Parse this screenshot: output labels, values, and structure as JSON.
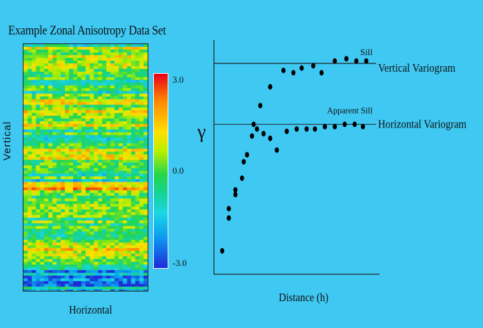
{
  "left_panel": {
    "title": "Example Zonal Anisotropy Data Set",
    "vertical_label": "Vertical",
    "horizontal_label": "Horizontal",
    "colorbar": {
      "ticks": [
        "3.0",
        "0.0",
        "-3.0"
      ],
      "range": [
        -3.0,
        3.0
      ]
    }
  },
  "chart_data": {
    "type": "scatter",
    "title": "",
    "xlabel": "Distance (h)",
    "ylabel": "γ",
    "xlim": [
      0,
      10
    ],
    "ylim": [
      0,
      10
    ],
    "series": [
      {
        "name": "Vertical Variogram",
        "points": [
          [
            0.5,
            1.0
          ],
          [
            0.9,
            2.4
          ],
          [
            1.3,
            3.4
          ],
          [
            1.8,
            4.8
          ],
          [
            2.4,
            6.4
          ],
          [
            2.8,
            7.2
          ],
          [
            3.4,
            8.0
          ],
          [
            4.2,
            8.7
          ],
          [
            4.8,
            8.6
          ],
          [
            5.3,
            8.8
          ],
          [
            6.0,
            8.9
          ],
          [
            6.5,
            8.6
          ],
          [
            7.3,
            9.1
          ],
          [
            8.0,
            9.2
          ],
          [
            8.6,
            9.1
          ],
          [
            9.2,
            9.1
          ]
        ],
        "sill_level": 9.0,
        "annotation": "Sill"
      },
      {
        "name": "Horizontal Variogram",
        "points": [
          [
            0.9,
            2.8
          ],
          [
            1.3,
            3.6
          ],
          [
            1.7,
            4.1
          ],
          [
            2.0,
            5.1
          ],
          [
            2.3,
            5.9
          ],
          [
            2.6,
            6.2
          ],
          [
            3.0,
            6.0
          ],
          [
            3.4,
            5.8
          ],
          [
            3.8,
            5.3
          ],
          [
            4.4,
            6.1
          ],
          [
            5.0,
            6.2
          ],
          [
            5.6,
            6.2
          ],
          [
            6.1,
            6.2
          ],
          [
            6.7,
            6.3
          ],
          [
            7.3,
            6.3
          ],
          [
            7.9,
            6.4
          ],
          [
            8.5,
            6.4
          ],
          [
            9.0,
            6.3
          ]
        ],
        "sill_level": 6.4,
        "annotation": "Apparent Sill"
      }
    ]
  }
}
